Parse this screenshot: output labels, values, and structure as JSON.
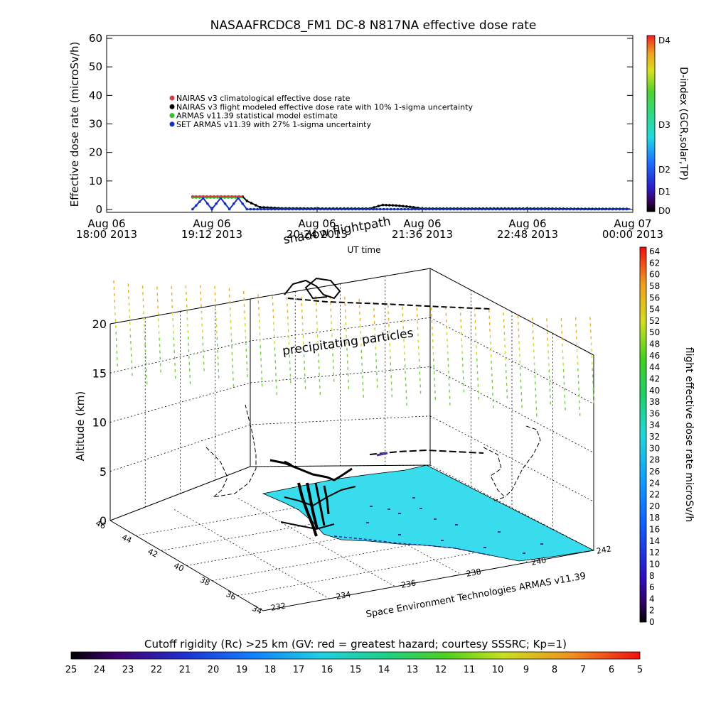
{
  "top_chart": {
    "title": "NASAAFRCDC8_FM1 DC-8   N817NA effective dose rate",
    "ylabel": "Effective dose rate (microSv/h)",
    "xlabel": "UT time",
    "y_ticks": [
      "0",
      "10",
      "20",
      "30",
      "40",
      "50",
      "60"
    ],
    "x_ticks": [
      {
        "date": "Aug 06",
        "sub": "18:00 2013"
      },
      {
        "date": "Aug 06",
        "sub": "19:12 2013"
      },
      {
        "date": "Aug 06",
        "sub": "20:24 2013"
      },
      {
        "date": "Aug 06",
        "sub": "21:36 2013"
      },
      {
        "date": "Aug 06",
        "sub": "22:48 2013"
      },
      {
        "date": "Aug 07",
        "sub": "00:00 2013"
      }
    ],
    "legend": [
      {
        "label": "NAIRAS v3 climatological effective dose rate",
        "color": "#d04040"
      },
      {
        "label": "NAIRAS v3 flight modeled effective dose rate with 10% 1-sigma uncertainty",
        "color": "#000000"
      },
      {
        "label": "ARMAS v11.39 statistical model estimate",
        "color": "#30c030"
      },
      {
        "label": "SET ARMAS v11.39 with 27% 1-sigma uncertainty",
        "color": "#1030c0"
      }
    ],
    "dindex_label": "D-index (GCR,solar,TP)",
    "dindex_ticks": [
      "D4",
      "D3",
      "D2",
      "D1",
      "D0"
    ]
  },
  "chart_data": [
    {
      "type": "line",
      "title": "NASAAFRCDC8_FM1 DC-8   N817NA effective dose rate",
      "xlabel": "UT time",
      "ylabel": "Effective dose rate (microSv/h)",
      "ylim": [
        0,
        60
      ],
      "x_unit": "UT hours since Aug 06 2013 00:00",
      "xlim": [
        18.0,
        24.0
      ],
      "grid": false,
      "legend_position": "upper-left-inside",
      "series": [
        {
          "name": "NAIRAS v3 flight modeled effective dose rate with 10% 1-sigma uncertainty",
          "x": [
            18.98,
            19.55,
            19.6,
            19.7,
            19.75,
            20.0,
            20.5,
            21.0,
            21.1,
            21.15,
            21.3,
            21.5,
            21.6,
            22.0,
            22.5,
            23.0,
            23.5,
            23.97
          ],
          "values": [
            4.5,
            4.5,
            3.0,
            1.5,
            0.8,
            0.4,
            0.3,
            0.3,
            1.2,
            1.6,
            1.4,
            0.8,
            0.3,
            0.3,
            0.3,
            0.3,
            0.2,
            0.2
          ]
        },
        {
          "name": "ARMAS v11.39 statistical model estimate",
          "x": [
            18.98,
            19.55
          ],
          "values": [
            4.2,
            4.2
          ]
        },
        {
          "name": "SET ARMAS v11.39 with 27% 1-sigma uncertainty",
          "x": [
            18.98,
            19.1,
            19.2,
            19.3,
            19.4,
            19.5,
            19.6,
            20.0,
            21.0,
            22.0,
            23.0,
            23.97
          ],
          "values": [
            0.1,
            4.0,
            0.1,
            4.0,
            0.1,
            4.0,
            0.1,
            0.1,
            0.1,
            0.1,
            0.1,
            0.1
          ]
        },
        {
          "name": "NAIRAS v3 climatological effective dose rate",
          "x": [
            18.98,
            19.55
          ],
          "values": [
            4.6,
            4.6
          ]
        }
      ]
    },
    {
      "type": "scatter",
      "title": "",
      "subtitle": "Space Environment Technologies ARMAS v11.39",
      "zlabel": "Altitude (km)",
      "z_ticks": [
        "0",
        "5",
        "10",
        "15",
        "20"
      ],
      "lat_ticks": [
        "34",
        "36",
        "38",
        "40",
        "42",
        "44",
        "46"
      ],
      "lon_ticks": [
        "232",
        "234",
        "236",
        "238",
        "240",
        "242"
      ],
      "annotations": [
        "shadow flightpath",
        "precipitating particles"
      ],
      "colorbar_label": "flight effective dose rate microSv/h",
      "colorbar_ticks": [
        "0",
        "2",
        "4",
        "6",
        "8",
        "10",
        "12",
        "14",
        "16",
        "18",
        "20",
        "22",
        "24",
        "26",
        "28",
        "30",
        "32",
        "34",
        "36",
        "38",
        "40",
        "42",
        "44",
        "46",
        "48",
        "50",
        "52",
        "54",
        "56",
        "58",
        "60",
        "62",
        "64"
      ]
    },
    {
      "type": "heatmap",
      "title": "Cutoff rigidity (Rc) >25 km (GV: red = greatest hazard; courtesy SSSRC; Kp=1)",
      "colorbar_ticks": [
        "25",
        "24",
        "23",
        "22",
        "21",
        "20",
        "19",
        "18",
        "17",
        "16",
        "15",
        "14",
        "13",
        "12",
        "11",
        "10",
        "9",
        "8",
        "7",
        "6",
        "5"
      ]
    }
  ],
  "colors": {
    "surface_cyan": "#38dcec",
    "altitude_grid": "#000000",
    "particle_high": "#e8b020",
    "particle_mid": "#c8d830",
    "particle_low": "#70d040"
  }
}
